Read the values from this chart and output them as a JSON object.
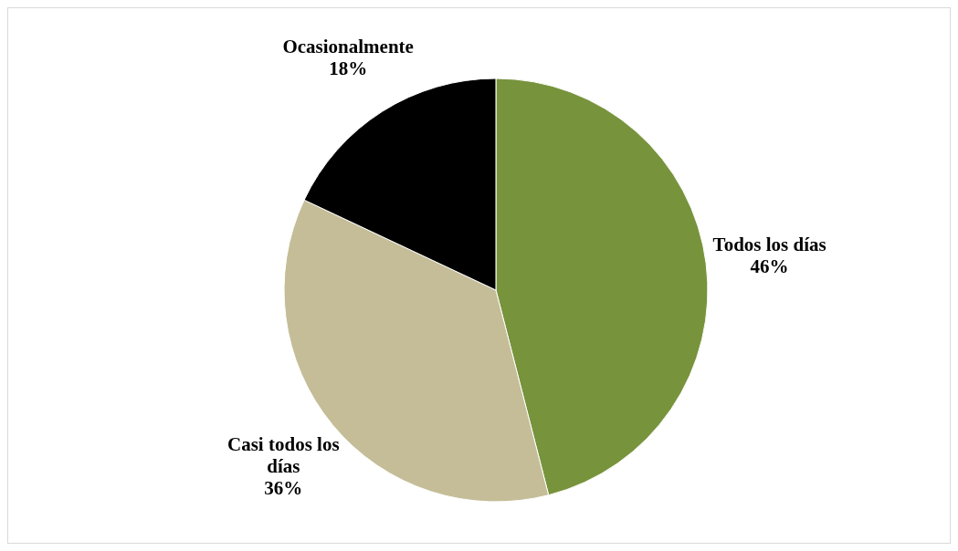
{
  "chart_data": {
    "type": "pie",
    "categories": [
      "Todos los días",
      "Casi todos los días",
      "Ocasionalmente"
    ],
    "values": [
      46,
      36,
      18
    ],
    "colors": [
      "#77933c",
      "#c4bd97",
      "#000000"
    ],
    "value_labels": [
      "46%",
      "36%",
      "18%"
    ]
  }
}
